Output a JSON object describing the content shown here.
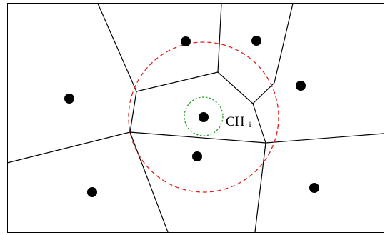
{
  "diagram": {
    "label": {
      "main": "CH",
      "subscript": "i"
    },
    "colors": {
      "border": "#000000",
      "edges": "#000000",
      "nodes": "#000000",
      "outer_circle": "#e0201b",
      "inner_circle": "#2e9e2e",
      "background": "#ffffff"
    }
  }
}
